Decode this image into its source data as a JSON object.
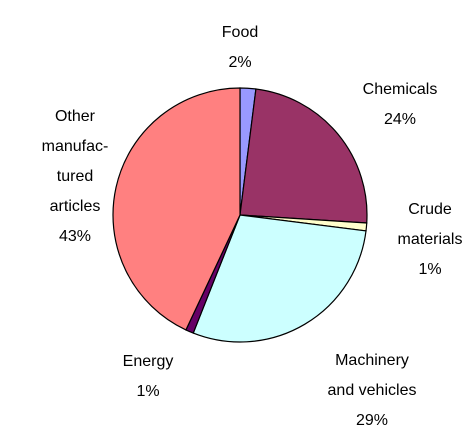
{
  "chart_data": {
    "type": "pie",
    "categories": [
      "Food",
      "Chemicals",
      "Crude materials",
      "Machinery and vehicles",
      "Energy",
      "Other manufac-tured articles"
    ],
    "values": [
      2,
      24,
      1,
      29,
      1,
      43
    ],
    "value_labels": [
      "2%",
      "24%",
      "1%",
      "29%",
      "1%",
      "43%"
    ],
    "colors": [
      "#9999ff",
      "#993366",
      "#ffffcc",
      "#ccffff",
      "#660066",
      "#ff8080"
    ]
  }
}
